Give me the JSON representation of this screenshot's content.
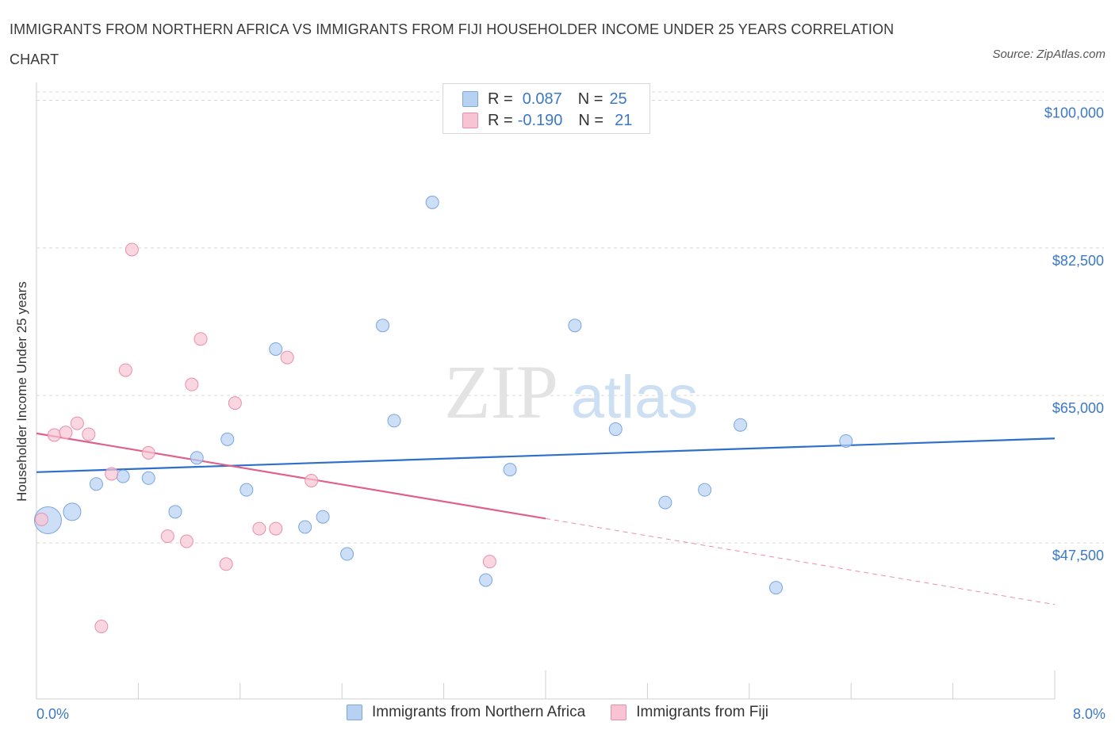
{
  "title": "IMMIGRANTS FROM NORTHERN AFRICA VS IMMIGRANTS FROM FIJI HOUSEHOLDER INCOME UNDER 25 YEARS CORRELATION CHART",
  "source": "Source: ZipAtlas.com",
  "watermark": {
    "zip": "ZIP",
    "atlas": "atlas"
  },
  "legend_top": {
    "rows": [
      {
        "r_label": "R =",
        "r_value": "0.087",
        "n_label": "N =",
        "n_value": "25"
      },
      {
        "r_label": "R =",
        "r_value": "-0.190",
        "n_label": "N =",
        "n_value": "21"
      }
    ]
  },
  "colors": {
    "blue_fill": "#b7d1f3",
    "blue_stroke": "#7aa6e0",
    "blue_line": "#2d6fcb",
    "pink_fill": "#f8c4d3",
    "pink_stroke": "#e98fac",
    "pink_line": "#e0608d",
    "tick_label": "#3b78c9",
    "grid": "#d9d9d9"
  },
  "chart_data": {
    "type": "scatter",
    "title": "IMMIGRANTS FROM NORTHERN AFRICA VS IMMIGRANTS FROM FIJI HOUSEHOLDER INCOME UNDER 25 YEARS CORRELATION CHART",
    "xlabel": "",
    "ylabel": "Householder Income Under 25 years",
    "xlim": [
      0,
      8
    ],
    "ylim": [
      29000,
      101000
    ],
    "x_tick_labels": [
      "0.0%",
      "8.0%"
    ],
    "y_ticks": [
      47500,
      65000,
      82500,
      100000
    ],
    "y_tick_labels": [
      "$47,500",
      "$65,000",
      "$82,500",
      "$100,000"
    ],
    "grid": true,
    "legend_position": "bottom",
    "series": [
      {
        "name": "Immigrants from Northern Africa",
        "color": "#b7d1f3",
        "points": [
          {
            "x": 0.09,
            "y": 50200,
            "size": "large"
          },
          {
            "x": 0.28,
            "y": 51200,
            "size": "medium"
          },
          {
            "x": 0.47,
            "y": 54500
          },
          {
            "x": 0.68,
            "y": 55400
          },
          {
            "x": 0.88,
            "y": 55200
          },
          {
            "x": 1.09,
            "y": 51200
          },
          {
            "x": 1.26,
            "y": 57600
          },
          {
            "x": 1.5,
            "y": 59800
          },
          {
            "x": 1.65,
            "y": 53800
          },
          {
            "x": 1.88,
            "y": 70500
          },
          {
            "x": 2.11,
            "y": 49400
          },
          {
            "x": 2.25,
            "y": 50600
          },
          {
            "x": 2.44,
            "y": 46200
          },
          {
            "x": 2.72,
            "y": 73300
          },
          {
            "x": 2.81,
            "y": 62000
          },
          {
            "x": 3.11,
            "y": 87900
          },
          {
            "x": 3.53,
            "y": 43100
          },
          {
            "x": 3.72,
            "y": 56200
          },
          {
            "x": 4.23,
            "y": 73300
          },
          {
            "x": 4.55,
            "y": 61000
          },
          {
            "x": 4.94,
            "y": 52300
          },
          {
            "x": 5.25,
            "y": 53800
          },
          {
            "x": 5.53,
            "y": 61500
          },
          {
            "x": 5.81,
            "y": 42200
          },
          {
            "x": 6.36,
            "y": 59600
          }
        ],
        "trend": {
          "x0": 0.0,
          "y0": 55900,
          "x1": 8.0,
          "y1": 59900
        }
      },
      {
        "name": "Immigrants from Fiji",
        "color": "#f8c4d3",
        "points": [
          {
            "x": 0.04,
            "y": 50300
          },
          {
            "x": 0.14,
            "y": 60300
          },
          {
            "x": 0.23,
            "y": 60600
          },
          {
            "x": 0.32,
            "y": 61700
          },
          {
            "x": 0.41,
            "y": 60400
          },
          {
            "x": 0.59,
            "y": 55700
          },
          {
            "x": 0.7,
            "y": 68000
          },
          {
            "x": 0.75,
            "y": 82300
          },
          {
            "x": 0.88,
            "y": 58200
          },
          {
            "x": 1.03,
            "y": 48300
          },
          {
            "x": 1.18,
            "y": 47700
          },
          {
            "x": 1.22,
            "y": 66300
          },
          {
            "x": 1.29,
            "y": 71700
          },
          {
            "x": 1.49,
            "y": 45000
          },
          {
            "x": 1.56,
            "y": 64100
          },
          {
            "x": 1.75,
            "y": 49200
          },
          {
            "x": 1.88,
            "y": 49200
          },
          {
            "x": 1.97,
            "y": 69500
          },
          {
            "x": 2.16,
            "y": 54900
          },
          {
            "x": 0.51,
            "y": 37600
          },
          {
            "x": 3.56,
            "y": 45300
          }
        ],
        "trend": {
          "x0": 0.0,
          "y0": 60500,
          "x1": 4.0,
          "y1": 50400
        },
        "trend_dashed": {
          "x0": 4.0,
          "y0": 50400,
          "x1": 8.0,
          "y1": 40200
        }
      }
    ]
  }
}
